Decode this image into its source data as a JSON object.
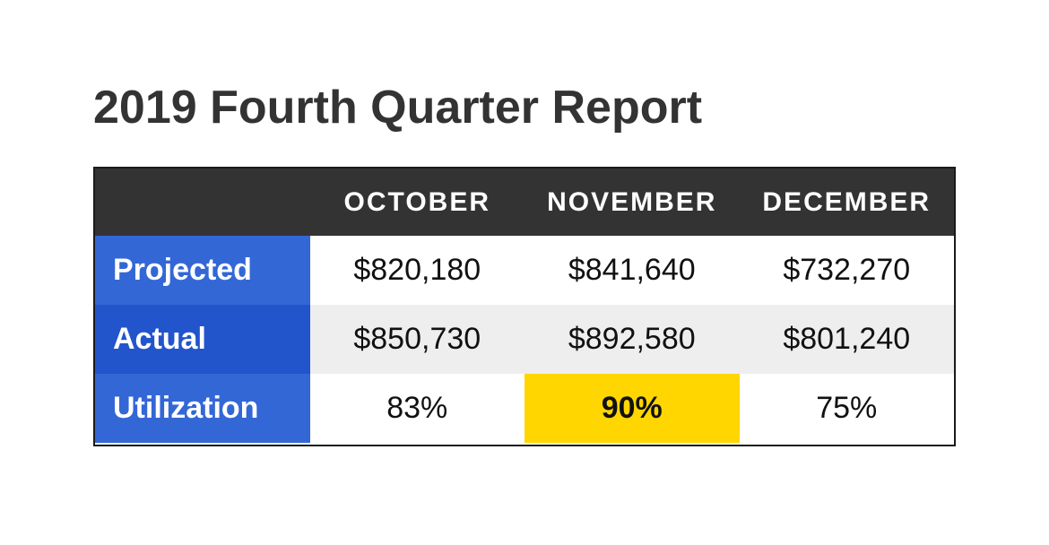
{
  "chart_data": {
    "type": "table",
    "title": "2019 Fourth Quarter Report",
    "columns": [
      "OCTOBER",
      "NOVEMBER",
      "DECEMBER"
    ],
    "rows": [
      {
        "label": "Projected",
        "values": [
          "$820,180",
          "$841,640",
          "$732,270"
        ]
      },
      {
        "label": "Actual",
        "values": [
          "$850,730",
          "$892,580",
          "$801,240"
        ]
      },
      {
        "label": "Utilization",
        "values": [
          "83%",
          "90%",
          "75%"
        ]
      }
    ],
    "highlight": {
      "row": "Utilization",
      "column": "NOVEMBER",
      "color": "#ffd600"
    }
  },
  "colors": {
    "header_bg": "#333333",
    "row_label_bg": "#3367d6",
    "row_label_bg_alt": "#2255cc",
    "alt_row_bg": "#eeeeee",
    "highlight": "#ffd600"
  }
}
